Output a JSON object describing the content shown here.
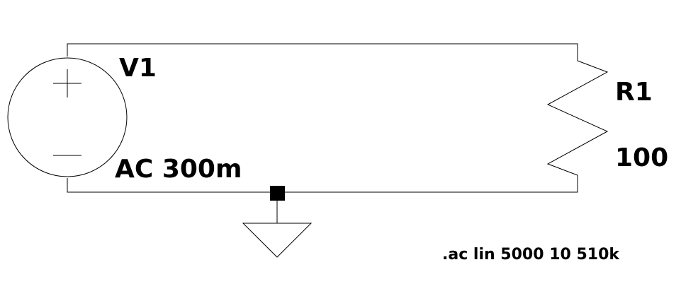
{
  "schematic": {
    "source": {
      "name": "V1",
      "value": "AC 300m"
    },
    "resistor": {
      "name": "R1",
      "value": "100"
    },
    "directive": ".ac lin 5000 10 510k",
    "colors": {
      "wire": "#000000",
      "background": "#ffffff",
      "junction": "#000000"
    }
  }
}
